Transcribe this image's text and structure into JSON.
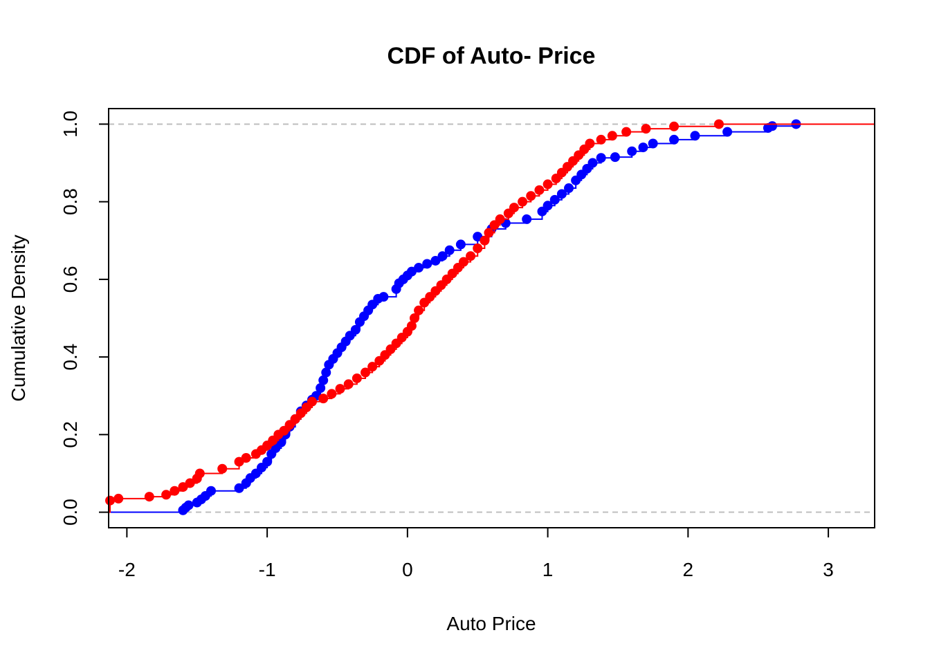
{
  "chart_data": {
    "type": "line",
    "subtype": "step-cdf",
    "title": "CDF of Auto- Price",
    "xlabel": "Auto Price",
    "ylabel": "Cumulative Density",
    "xlim": [
      -2.13,
      3.33
    ],
    "ylim": [
      -0.04,
      1.04
    ],
    "x_ticks": [
      -2,
      -1,
      0,
      1,
      2,
      3
    ],
    "x_tick_labels": [
      "-2",
      "-1",
      "0",
      "1",
      "2",
      "3"
    ],
    "y_ticks": [
      0.0,
      0.2,
      0.4,
      0.6,
      0.8,
      1.0
    ],
    "y_tick_labels": [
      "0.0",
      "0.2",
      "0.4",
      "0.6",
      "0.8",
      "1.0"
    ],
    "reference_lines": [
      0,
      1
    ],
    "reference_line_color": "#bebebe",
    "series": [
      {
        "color": "#0000ff",
        "points": [
          [
            -1.6,
            0.005
          ],
          [
            -1.58,
            0.012
          ],
          [
            -1.56,
            0.018
          ],
          [
            -1.5,
            0.025
          ],
          [
            -1.47,
            0.033
          ],
          [
            -1.44,
            0.042
          ],
          [
            -1.4,
            0.055
          ],
          [
            -1.2,
            0.062
          ],
          [
            -1.15,
            0.075
          ],
          [
            -1.12,
            0.088
          ],
          [
            -1.08,
            0.1
          ],
          [
            -1.04,
            0.115
          ],
          [
            -1.0,
            0.13
          ],
          [
            -0.97,
            0.15
          ],
          [
            -0.94,
            0.165
          ],
          [
            -0.9,
            0.18
          ],
          [
            -0.87,
            0.2
          ],
          [
            -0.84,
            0.22
          ],
          [
            -0.8,
            0.24
          ],
          [
            -0.76,
            0.26
          ],
          [
            -0.72,
            0.275
          ],
          [
            -0.68,
            0.29
          ],
          [
            -0.65,
            0.3
          ],
          [
            -0.62,
            0.32
          ],
          [
            -0.6,
            0.34
          ],
          [
            -0.58,
            0.36
          ],
          [
            -0.56,
            0.38
          ],
          [
            -0.53,
            0.395
          ],
          [
            -0.5,
            0.41
          ],
          [
            -0.47,
            0.425
          ],
          [
            -0.44,
            0.44
          ],
          [
            -0.41,
            0.455
          ],
          [
            -0.37,
            0.47
          ],
          [
            -0.34,
            0.49
          ],
          [
            -0.31,
            0.505
          ],
          [
            -0.28,
            0.52
          ],
          [
            -0.25,
            0.535
          ],
          [
            -0.21,
            0.55
          ],
          [
            -0.17,
            0.555
          ],
          [
            -0.08,
            0.575
          ],
          [
            -0.06,
            0.59
          ],
          [
            -0.03,
            0.6
          ],
          [
            0.0,
            0.61
          ],
          [
            0.03,
            0.62
          ],
          [
            0.08,
            0.63
          ],
          [
            0.14,
            0.64
          ],
          [
            0.2,
            0.648
          ],
          [
            0.25,
            0.66
          ],
          [
            0.3,
            0.675
          ],
          [
            0.38,
            0.69
          ],
          [
            0.5,
            0.71
          ],
          [
            0.6,
            0.73
          ],
          [
            0.7,
            0.745
          ],
          [
            0.85,
            0.755
          ],
          [
            0.96,
            0.775
          ],
          [
            1.0,
            0.79
          ],
          [
            1.05,
            0.805
          ],
          [
            1.1,
            0.82
          ],
          [
            1.15,
            0.835
          ],
          [
            1.2,
            0.855
          ],
          [
            1.24,
            0.87
          ],
          [
            1.28,
            0.885
          ],
          [
            1.32,
            0.9
          ],
          [
            1.38,
            0.913
          ],
          [
            1.48,
            0.915
          ],
          [
            1.6,
            0.93
          ],
          [
            1.68,
            0.94
          ],
          [
            1.75,
            0.95
          ],
          [
            1.9,
            0.96
          ],
          [
            2.05,
            0.97
          ],
          [
            2.28,
            0.98
          ],
          [
            2.57,
            0.99
          ],
          [
            2.6,
            0.995
          ],
          [
            2.77,
            1.0
          ]
        ]
      },
      {
        "color": "#ff0000",
        "points": [
          [
            -2.12,
            0.03
          ],
          [
            -2.06,
            0.035
          ],
          [
            -1.84,
            0.04
          ],
          [
            -1.72,
            0.045
          ],
          [
            -1.66,
            0.055
          ],
          [
            -1.6,
            0.065
          ],
          [
            -1.55,
            0.075
          ],
          [
            -1.5,
            0.087
          ],
          [
            -1.48,
            0.1
          ],
          [
            -1.32,
            0.112
          ],
          [
            -1.2,
            0.13
          ],
          [
            -1.15,
            0.14
          ],
          [
            -1.08,
            0.15
          ],
          [
            -1.04,
            0.16
          ],
          [
            -1.0,
            0.172
          ],
          [
            -0.96,
            0.185
          ],
          [
            -0.92,
            0.2
          ],
          [
            -0.88,
            0.21
          ],
          [
            -0.84,
            0.225
          ],
          [
            -0.8,
            0.24
          ],
          [
            -0.76,
            0.255
          ],
          [
            -0.72,
            0.27
          ],
          [
            -0.68,
            0.285
          ],
          [
            -0.6,
            0.293
          ],
          [
            -0.54,
            0.305
          ],
          [
            -0.48,
            0.318
          ],
          [
            -0.42,
            0.33
          ],
          [
            -0.36,
            0.345
          ],
          [
            -0.3,
            0.36
          ],
          [
            -0.25,
            0.375
          ],
          [
            -0.2,
            0.39
          ],
          [
            -0.16,
            0.405
          ],
          [
            -0.12,
            0.42
          ],
          [
            -0.08,
            0.435
          ],
          [
            -0.04,
            0.45
          ],
          [
            0.0,
            0.465
          ],
          [
            0.03,
            0.48
          ],
          [
            0.05,
            0.5
          ],
          [
            0.08,
            0.52
          ],
          [
            0.12,
            0.54
          ],
          [
            0.16,
            0.555
          ],
          [
            0.2,
            0.57
          ],
          [
            0.24,
            0.585
          ],
          [
            0.28,
            0.6
          ],
          [
            0.32,
            0.615
          ],
          [
            0.36,
            0.63
          ],
          [
            0.4,
            0.645
          ],
          [
            0.45,
            0.66
          ],
          [
            0.5,
            0.68
          ],
          [
            0.55,
            0.7
          ],
          [
            0.58,
            0.72
          ],
          [
            0.62,
            0.74
          ],
          [
            0.66,
            0.755
          ],
          [
            0.72,
            0.77
          ],
          [
            0.76,
            0.785
          ],
          [
            0.82,
            0.8
          ],
          [
            0.88,
            0.815
          ],
          [
            0.94,
            0.83
          ],
          [
            1.0,
            0.845
          ],
          [
            1.06,
            0.86
          ],
          [
            1.1,
            0.875
          ],
          [
            1.14,
            0.89
          ],
          [
            1.18,
            0.905
          ],
          [
            1.22,
            0.92
          ],
          [
            1.26,
            0.935
          ],
          [
            1.3,
            0.95
          ],
          [
            1.38,
            0.96
          ],
          [
            1.46,
            0.97
          ],
          [
            1.56,
            0.98
          ],
          [
            1.7,
            0.988
          ],
          [
            1.9,
            0.994
          ],
          [
            2.22,
            1.0
          ]
        ]
      }
    ]
  }
}
